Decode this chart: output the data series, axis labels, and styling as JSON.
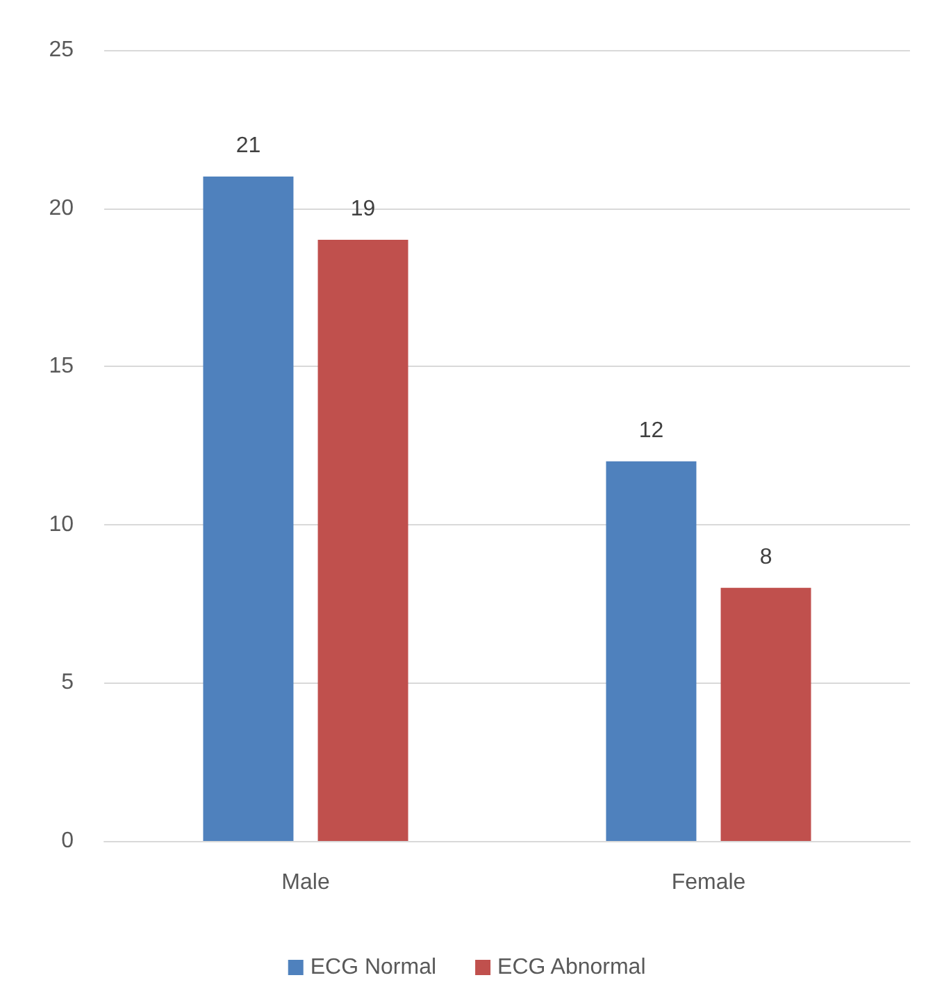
{
  "chart_data": {
    "type": "bar",
    "categories": [
      "Male",
      "Female"
    ],
    "series": [
      {
        "name": "ECG Normal",
        "color": "#4f81bd",
        "values": [
          21,
          12
        ]
      },
      {
        "name": "ECG Abnormal",
        "color": "#c0504d",
        "values": [
          19,
          8
        ]
      }
    ],
    "ylim": [
      0,
      25
    ],
    "yticks": [
      0,
      5,
      10,
      15,
      20,
      25
    ],
    "grid": "y",
    "legend": "bottom",
    "data_labels": true
  }
}
